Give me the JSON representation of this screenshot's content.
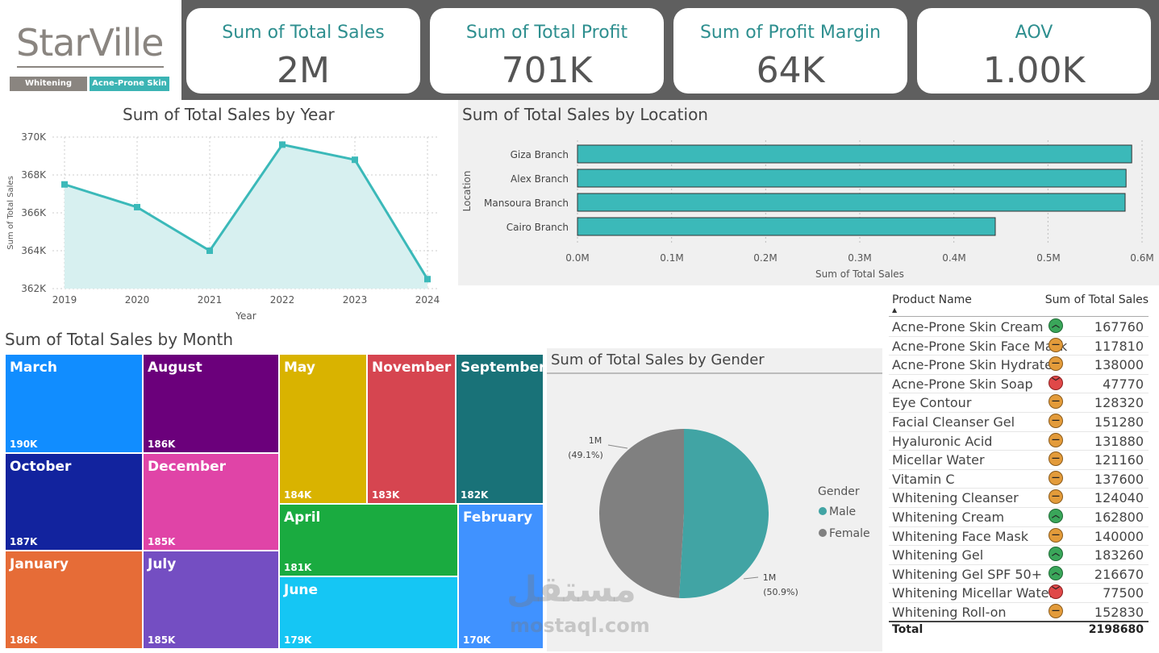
{
  "logo": {
    "word": "StarVille",
    "tag_left": "Whitening",
    "tag_right": "Acne-Prone Skin"
  },
  "kpis": [
    {
      "title": "Sum of Total Sales",
      "value": "2M"
    },
    {
      "title": "Sum of Total Profit",
      "value": "701K"
    },
    {
      "title": "Sum of Profit Margin",
      "value": "64K"
    },
    {
      "title": "AOV",
      "value": "1.00K"
    }
  ],
  "year_chart": {
    "title": "Sum of Total Sales by Year",
    "xlabel": "Year",
    "ylabel": "Sum of Total Sales",
    "y_ticks": [
      "370K",
      "368K",
      "366K",
      "364K",
      "362K"
    ],
    "x_ticks": [
      "2019",
      "2020",
      "2021",
      "2022",
      "2023",
      "2024"
    ]
  },
  "location_chart": {
    "title": "Sum of Total Sales by Location",
    "xlabel": "Sum of Total Sales",
    "ylabel": "Location",
    "x_ticks": [
      "0.0M",
      "0.1M",
      "0.2M",
      "0.3M",
      "0.4M",
      "0.5M",
      "0.6M"
    ]
  },
  "month_chart": {
    "title": "Sum of Total Sales by Month"
  },
  "gender_chart": {
    "title": "Sum of Total Sales by Gender",
    "legend_title": "Gender",
    "legend": [
      "Male",
      "Female"
    ],
    "label_female": "1M",
    "label_female_pct": "(49.1%)",
    "label_male": "1M",
    "label_male_pct": "(50.9%)"
  },
  "product_table": {
    "col_name": "Product Name",
    "col_value": "Sum of Total Sales",
    "rows": [
      {
        "name": "Acne-Prone Skin Cream",
        "value": "167760",
        "status": "up"
      },
      {
        "name": "Acne-Prone Skin Face Mask",
        "value": "117810",
        "status": "mid"
      },
      {
        "name": "Acne-Prone Skin Hydrate",
        "value": "138000",
        "status": "mid"
      },
      {
        "name": "Acne-Prone Skin Soap",
        "value": "47770",
        "status": "down"
      },
      {
        "name": "Eye Contour",
        "value": "128320",
        "status": "mid"
      },
      {
        "name": "Facial Cleanser Gel",
        "value": "151280",
        "status": "mid"
      },
      {
        "name": "Hyaluronic Acid",
        "value": "131880",
        "status": "mid"
      },
      {
        "name": "Micellar Water",
        "value": "121160",
        "status": "mid"
      },
      {
        "name": "Vitamin C",
        "value": "137600",
        "status": "mid"
      },
      {
        "name": "Whitening Cleanser",
        "value": "124040",
        "status": "mid"
      },
      {
        "name": "Whitening Cream",
        "value": "162800",
        "status": "up"
      },
      {
        "name": "Whitening Face Mask",
        "value": "140000",
        "status": "mid"
      },
      {
        "name": "Whitening Gel",
        "value": "183260",
        "status": "up"
      },
      {
        "name": "Whitening Gel SPF 50+",
        "value": "216670",
        "status": "up"
      },
      {
        "name": "Whitening Micellar Water",
        "value": "77500",
        "status": "down"
      },
      {
        "name": "Whitening Roll-on",
        "value": "152830",
        "status": "mid"
      }
    ],
    "total_label": "Total",
    "total_value": "2198680"
  },
  "watermark": {
    "arabic": "مستقل",
    "latin": "mostaql.com"
  },
  "chart_data": [
    {
      "type": "area",
      "x": [
        "2019",
        "2020",
        "2021",
        "2022",
        "2023",
        "2024"
      ],
      "values": [
        367.5,
        366.3,
        364.0,
        369.6,
        368.8,
        362.5
      ],
      "unit": "K",
      "title": "Sum of Total Sales by Year",
      "xlabel": "Year",
      "ylabel": "Sum of Total Sales",
      "ylim": [
        362,
        370
      ],
      "grid": true,
      "color": "#3bb9b9"
    },
    {
      "type": "bar",
      "orientation": "horizontal",
      "categories": [
        "Giza Branch",
        "Alex Branch",
        "Mansoura Branch",
        "Cairo Branch"
      ],
      "values": [
        0.589,
        0.583,
        0.582,
        0.444
      ],
      "unit": "M",
      "title": "Sum of Total Sales by Location",
      "xlabel": "Sum of Total Sales",
      "ylabel": "Location",
      "xlim": [
        0,
        0.6
      ],
      "grid": true,
      "color": "#3bb9b9"
    },
    {
      "type": "treemap",
      "title": "Sum of Total Sales by Month",
      "items": [
        {
          "name": "March",
          "label": "190K",
          "value": 190,
          "color": "#118dff"
        },
        {
          "name": "October",
          "label": "187K",
          "value": 187,
          "color": "#12239e"
        },
        {
          "name": "January",
          "label": "186K",
          "value": 186,
          "color": "#e66c37"
        },
        {
          "name": "August",
          "label": "186K",
          "value": 186,
          "color": "#6b007b"
        },
        {
          "name": "December",
          "label": "185K",
          "value": 185,
          "color": "#e044a7"
        },
        {
          "name": "July",
          "label": "185K",
          "value": 185,
          "color": "#744ec2"
        },
        {
          "name": "May",
          "label": "184K",
          "value": 184,
          "color": "#d9b300"
        },
        {
          "name": "November",
          "label": "183K",
          "value": 183,
          "color": "#d64550"
        },
        {
          "name": "September",
          "label": "182K",
          "value": 182,
          "color": "#197278"
        },
        {
          "name": "April",
          "label": "181K",
          "value": 181,
          "color": "#1aab40"
        },
        {
          "name": "June",
          "label": "179K",
          "value": 179,
          "color": "#15c6f4"
        },
        {
          "name": "February",
          "label": "170K",
          "value": 170,
          "color": "#4092ff"
        }
      ]
    },
    {
      "type": "pie",
      "title": "Sum of Total Sales by Gender",
      "slices": [
        {
          "name": "Male",
          "value": 50.9,
          "color": "#41a4a4"
        },
        {
          "name": "Female",
          "value": 49.1,
          "color": "#808080"
        }
      ]
    }
  ]
}
